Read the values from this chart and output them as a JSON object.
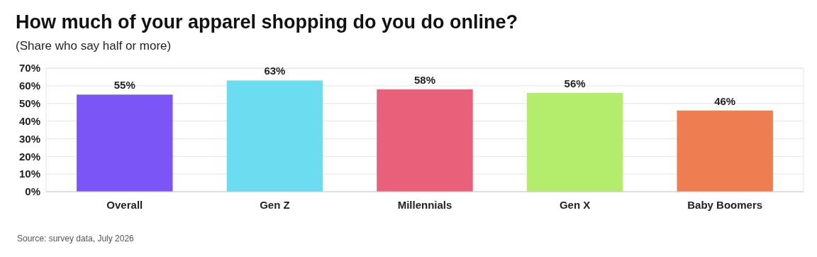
{
  "chart_data": {
    "type": "bar",
    "title": "How much of your apparel shopping do you do online?",
    "subtitle": "(Share who say half or more)",
    "categories": [
      "Overall",
      "Gen Z",
      "Millennials",
      "Gen X",
      "Baby Boomers"
    ],
    "values": [
      55,
      63,
      58,
      56,
      46
    ],
    "colors": [
      "#7b55f6",
      "#6cdcf1",
      "#e9607a",
      "#b3ed6b",
      "#ee7d51"
    ],
    "value_labels": [
      "55%",
      "63%",
      "58%",
      "56%",
      "46%"
    ],
    "ylim": [
      0,
      70
    ],
    "yticks": [
      {
        "value": 0,
        "label": "0%"
      },
      {
        "value": 10,
        "label": "10%"
      },
      {
        "value": 20,
        "label": "20%"
      },
      {
        "value": 30,
        "label": "30%"
      },
      {
        "value": 40,
        "label": "40%"
      },
      {
        "value": 50,
        "label": "50%"
      },
      {
        "value": 60,
        "label": "60%"
      },
      {
        "value": 70,
        "label": "70%"
      }
    ],
    "grid": "y",
    "annotations": [
      "Source: survey data, July 2026"
    ]
  }
}
